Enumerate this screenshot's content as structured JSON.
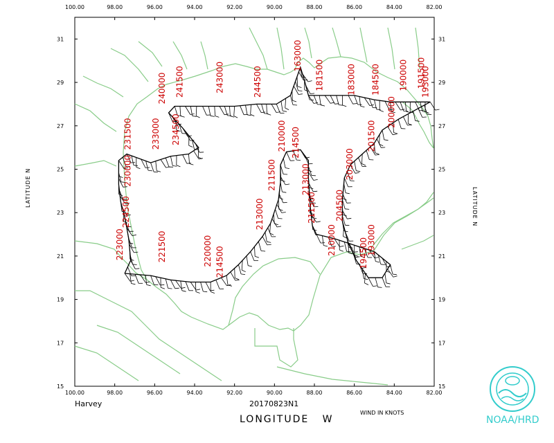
{
  "map": {
    "storm_name": "Harvey",
    "flight_id": "20170823N1",
    "wind_units_label": "WIND IN KNOTS",
    "x_axis_title": "LONGITUDE",
    "x_axis_title_dir": "W",
    "y_axis_title_left": "LATITUDE N",
    "y_axis_title_right": "LATITUDE N",
    "agency": "NOAA/HRD",
    "agency_color": "#33cccc",
    "coast_color": "#88cc88",
    "track_color": "#000000",
    "label_color": "#cc0000",
    "lon_ticks": [
      "100.00",
      "98.00",
      "96.00",
      "94.00",
      "92.00",
      "90.00",
      "88.00",
      "86.00",
      "84.00",
      "82.00"
    ],
    "lat_ticks": [
      "31",
      "29",
      "27",
      "25",
      "23",
      "21",
      "19",
      "17",
      "15"
    ],
    "lon_range": [
      -100,
      -82
    ],
    "lat_range": [
      15,
      32
    ],
    "logo_icon": "noaa-logo-icon"
  },
  "chart_data": {
    "type": "scatter",
    "title": "",
    "xlabel": "LONGITUDE W",
    "ylabel": "LATITUDE N",
    "xlim": [
      -100,
      -82
    ],
    "ylim": [
      15,
      32
    ],
    "track": [
      [
        -97.5,
        20.2
      ],
      [
        -97.2,
        20.8
      ],
      [
        -97.3,
        21.8
      ],
      [
        -97.5,
        22.8
      ],
      [
        -97.7,
        23.5
      ],
      [
        -97.8,
        24.3
      ],
      [
        -97.8,
        25.4
      ],
      [
        -97.4,
        25.7
      ],
      [
        -96.2,
        25.3
      ],
      [
        -95.2,
        25.6
      ],
      [
        -94.3,
        25.7
      ],
      [
        -93.8,
        26.0
      ],
      [
        -94.6,
        26.9
      ],
      [
        -95.3,
        27.6
      ],
      [
        -95.0,
        27.9
      ],
      [
        -94.2,
        27.9
      ],
      [
        -93.0,
        27.9
      ],
      [
        -92.0,
        27.9
      ],
      [
        -90.9,
        28.0
      ],
      [
        -89.9,
        28.0
      ],
      [
        -89.2,
        28.4
      ],
      [
        -88.7,
        29.7
      ],
      [
        -88.5,
        29.1
      ],
      [
        -88.3,
        28.4
      ],
      [
        -87.2,
        28.4
      ],
      [
        -86.0,
        28.4
      ],
      [
        -85.0,
        28.2
      ],
      [
        -84.2,
        28.1
      ],
      [
        -83.2,
        28.1
      ],
      [
        -82.2,
        28.1
      ],
      [
        -82.8,
        27.8
      ],
      [
        -83.8,
        27.3
      ],
      [
        -84.6,
        26.8
      ],
      [
        -85.0,
        26.2
      ],
      [
        -85.6,
        25.7
      ],
      [
        -86.2,
        25.2
      ],
      [
        -86.5,
        24.6
      ],
      [
        -86.6,
        23.6
      ],
      [
        -86.6,
        22.6
      ],
      [
        -86.3,
        21.6
      ],
      [
        -85.9,
        20.8
      ],
      [
        -85.3,
        20.0
      ],
      [
        -84.6,
        20.0
      ],
      [
        -84.2,
        20.6
      ],
      [
        -85.0,
        21.2
      ],
      [
        -86.0,
        21.5
      ],
      [
        -87.0,
        21.8
      ],
      [
        -87.9,
        22.0
      ],
      [
        -88.1,
        22.4
      ],
      [
        -88.2,
        23.2
      ],
      [
        -88.3,
        24.6
      ],
      [
        -88.3,
        25.4
      ],
      [
        -88.7,
        25.9
      ],
      [
        -89.4,
        25.8
      ],
      [
        -89.7,
        25.2
      ],
      [
        -89.7,
        24.4
      ],
      [
        -89.8,
        23.6
      ],
      [
        -90.2,
        22.5
      ],
      [
        -90.6,
        21.9
      ],
      [
        -91.2,
        21.2
      ],
      [
        -91.8,
        20.6
      ],
      [
        -92.4,
        20.1
      ],
      [
        -93.2,
        19.8
      ],
      [
        -94.2,
        19.8
      ],
      [
        -95.2,
        19.9
      ],
      [
        -96.2,
        20.1
      ],
      [
        -97.5,
        20.2
      ]
    ],
    "time_labels": [
      {
        "text": "223000",
        "lon": -97.6,
        "lat": 20.8
      },
      {
        "text": "224500",
        "lon": -97.3,
        "lat": 22.3
      },
      {
        "text": "230000",
        "lon": -97.2,
        "lat": 24.2
      },
      {
        "text": "231500",
        "lon": -97.2,
        "lat": 25.9
      },
      {
        "text": "233000",
        "lon": -95.8,
        "lat": 25.9
      },
      {
        "text": "234500",
        "lon": -94.8,
        "lat": 26.1
      },
      {
        "text": "240000",
        "lon": -95.5,
        "lat": 28.0
      },
      {
        "text": "241500",
        "lon": -94.6,
        "lat": 28.3
      },
      {
        "text": "243000",
        "lon": -92.6,
        "lat": 28.5
      },
      {
        "text": "244500",
        "lon": -90.7,
        "lat": 28.3
      },
      {
        "text": "163000",
        "lon": -88.7,
        "lat": 29.5
      },
      {
        "text": "181500",
        "lon": -87.6,
        "lat": 28.6
      },
      {
        "text": "183000",
        "lon": -86.0,
        "lat": 28.4
      },
      {
        "text": "184500",
        "lon": -84.8,
        "lat": 28.4
      },
      {
        "text": "190000",
        "lon": -83.4,
        "lat": 28.6
      },
      {
        "text": "191500",
        "lon": -82.5,
        "lat": 28.7
      },
      {
        "text": "193000",
        "lon": -82.3,
        "lat": 28.3
      },
      {
        "text": "200000",
        "lon": -84.0,
        "lat": 26.9
      },
      {
        "text": "201500",
        "lon": -85.0,
        "lat": 25.8
      },
      {
        "text": "203000",
        "lon": -86.1,
        "lat": 24.5
      },
      {
        "text": "204500",
        "lon": -86.6,
        "lat": 22.6
      },
      {
        "text": "210000",
        "lon": -87.0,
        "lat": 21.0
      },
      {
        "text": "211500",
        "lon": -88.0,
        "lat": 22.5
      },
      {
        "text": "213000",
        "lon": -88.3,
        "lat": 23.8
      },
      {
        "text": "214500",
        "lon": -88.8,
        "lat": 25.5
      },
      {
        "text": "210000",
        "lon": -89.5,
        "lat": 25.8
      },
      {
        "text": "211500",
        "lon": -90.0,
        "lat": 24.0
      },
      {
        "text": "213000",
        "lon": -90.6,
        "lat": 22.2
      },
      {
        "text": "214500",
        "lon": -92.6,
        "lat": 20.0
      },
      {
        "text": "220000",
        "lon": -93.2,
        "lat": 20.5
      },
      {
        "text": "221500",
        "lon": -95.5,
        "lat": 20.7
      },
      {
        "text": "194500",
        "lon": -85.4,
        "lat": 20.4
      },
      {
        "text": "193000",
        "lon": -85.0,
        "lat": 21.0
      }
    ]
  }
}
